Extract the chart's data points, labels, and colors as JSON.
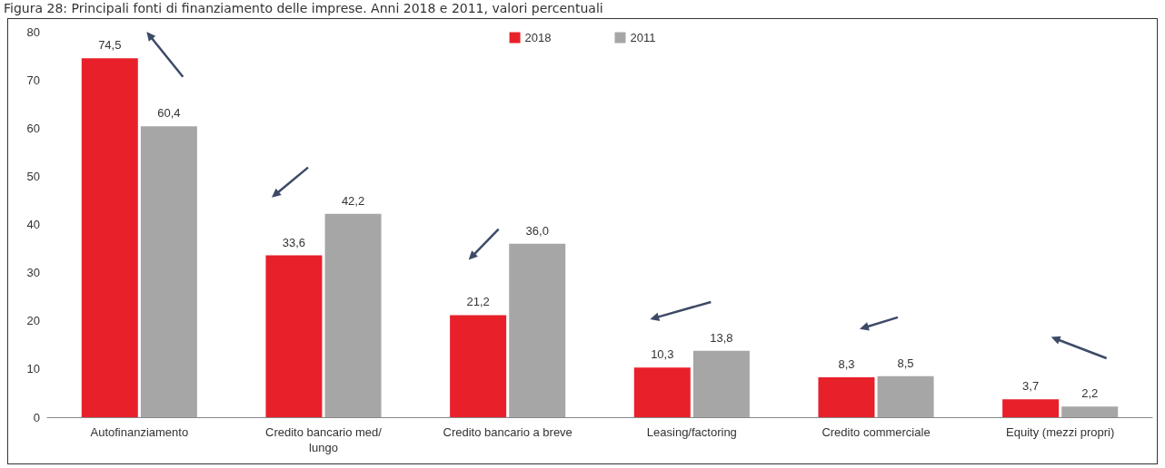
{
  "chart_data": {
    "type": "bar",
    "title": "Figura 28: Principali fonti di finanziamento delle imprese. Anni 2018 e 2011, valori percentuali",
    "categories": [
      "Autofinanziamento",
      "Credito bancario med/lungo",
      "Credito bancario a breve",
      "Leasing/factoring",
      "Credito commerciale",
      "Equity (mezzi propri)"
    ],
    "series": [
      {
        "name": "2018",
        "color": "#e8202a",
        "values": [
          74.5,
          33.6,
          21.2,
          10.3,
          8.3,
          3.7
        ]
      },
      {
        "name": "2011",
        "color": "#a6a6a6",
        "values": [
          60.4,
          42.2,
          36.0,
          13.8,
          8.5,
          2.2
        ]
      }
    ],
    "value_labels": [
      [
        "74,5",
        "33,6",
        "21,2",
        "10,3",
        "8,3",
        "3,7"
      ],
      [
        "60,4",
        "42,2",
        "36,0",
        "13,8",
        "8,5",
        "2,2"
      ]
    ],
    "ylim": [
      0,
      80
    ],
    "yticks": [
      0,
      10,
      20,
      30,
      40,
      50,
      60,
      70,
      80
    ],
    "grid": false,
    "legend": "top"
  }
}
